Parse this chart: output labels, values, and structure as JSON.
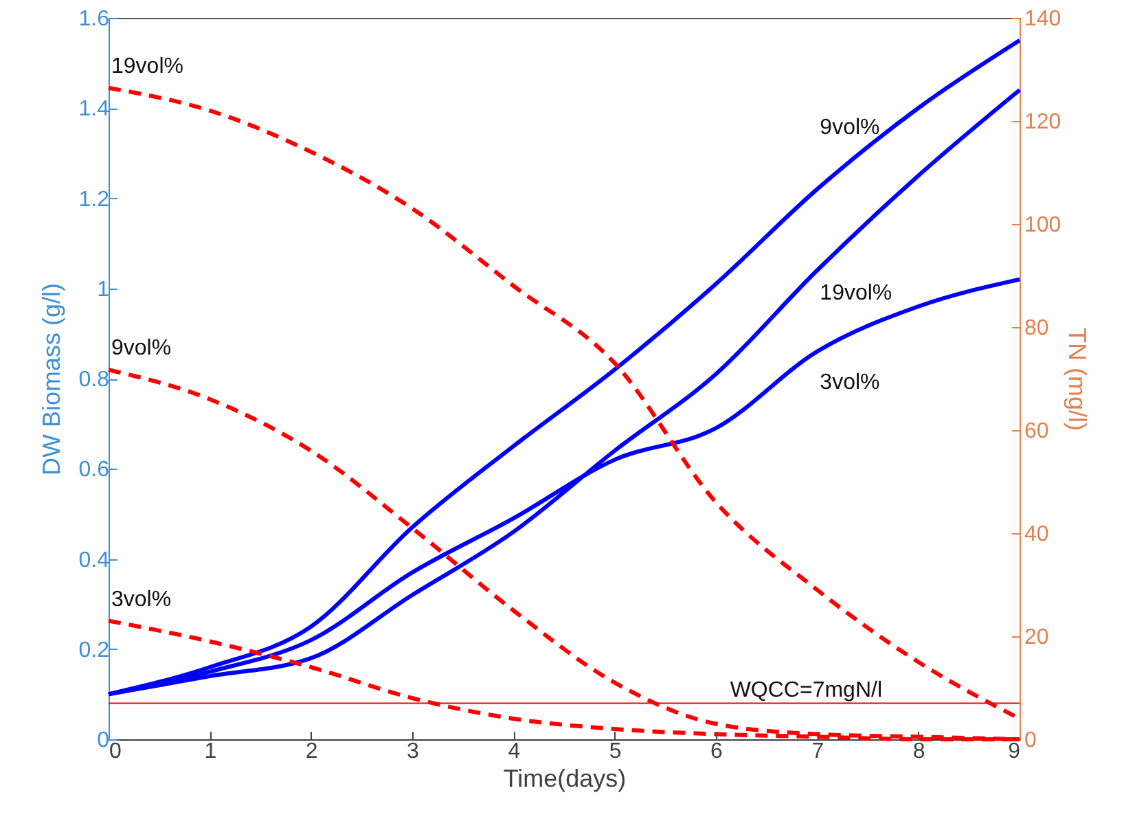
{
  "chart_data": {
    "type": "line",
    "xlabel": "Time(days)",
    "ylabel": "DW Biomass (g/l)",
    "y2label": "TN (mg/l)",
    "x": [
      0,
      1,
      2,
      3,
      4,
      5,
      6,
      7,
      8,
      9
    ],
    "xlim": [
      0,
      9
    ],
    "xticks": [
      0,
      1,
      2,
      3,
      4,
      5,
      6,
      7,
      8,
      9
    ],
    "ylim": [
      0,
      1.6
    ],
    "yticks": [
      0,
      0.2,
      0.4,
      0.6,
      0.8,
      1,
      1.2,
      1.4,
      1.6
    ],
    "y2lim": [
      0,
      140
    ],
    "y2ticks": [
      0,
      20,
      40,
      60,
      80,
      100,
      120,
      140
    ],
    "grid": false,
    "series": [
      {
        "name": "9vol%",
        "color": "#0000ff",
        "line_style": "solid",
        "values": [
          0.1,
          0.16,
          0.25,
          0.47,
          0.65,
          0.82,
          1.01,
          1.22,
          1.4,
          1.55
        ]
      },
      {
        "name": "19vol%",
        "color": "#0000ff",
        "line_style": "solid",
        "values": [
          0.1,
          0.14,
          0.18,
          0.32,
          0.46,
          0.64,
          0.81,
          1.04,
          1.25,
          1.44
        ]
      },
      {
        "name": "3vol%",
        "color": "#0000ff",
        "line_style": "solid",
        "values": [
          0.1,
          0.15,
          0.22,
          0.37,
          0.49,
          0.62,
          0.69,
          0.86,
          0.96,
          1.02
        ]
      },
      {
        "name": "19vol%",
        "color": "#ff0000",
        "line_style": "dashed",
        "axis": "y2",
        "values": [
          126.4,
          122,
          114,
          103,
          88,
          73,
          46,
          29,
          15,
          4
        ]
      },
      {
        "name": "9vol%",
        "color": "#ff0000",
        "line_style": "dashed",
        "axis": "y2",
        "values": [
          71.7,
          66,
          56,
          41,
          25,
          11,
          3,
          1,
          0.5,
          0
        ]
      },
      {
        "name": "3vol%",
        "color": "#ff0000",
        "line_style": "dashed",
        "axis": "y2",
        "values": [
          23,
          19,
          14,
          8,
          4,
          2,
          1,
          0.5,
          0,
          0
        ]
      }
    ],
    "ref_lines": [
      {
        "axis": "y2",
        "value": 7,
        "label": "WQCC=7mgN/l",
        "color": "#ff0000",
        "line_style": "solid"
      }
    ]
  }
}
